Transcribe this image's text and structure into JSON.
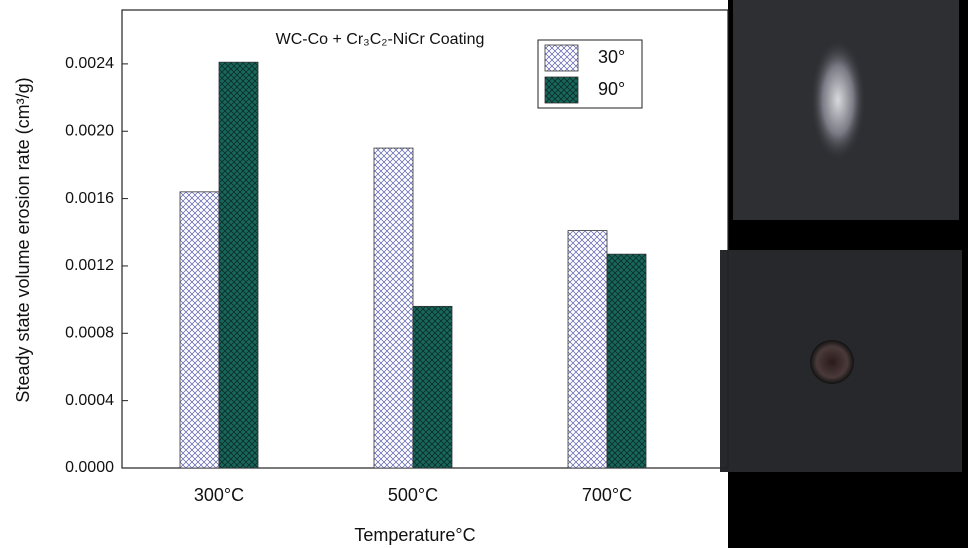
{
  "chart_data": {
    "type": "bar",
    "title": "WC-Co + Cr₃C₂-NiCr Coating",
    "x_label": "Temperature°C",
    "y_label": "Steady state volume erosion rate (cm³/g)",
    "categories": [
      "300°C",
      "500°C",
      "700°C"
    ],
    "series": [
      {
        "name": "30°",
        "color": "#5a5fb0",
        "values": [
          0.00164,
          0.0019,
          0.00141
        ]
      },
      {
        "name": "90°",
        "color": "#17675c",
        "values": [
          0.00241,
          0.00096,
          0.00127
        ]
      }
    ],
    "ylim": [
      0,
      0.00272
    ],
    "yticks": [
      {
        "value": 0,
        "label": "0.0000"
      },
      {
        "value": 0.0004,
        "label": "0.0004"
      },
      {
        "value": 0.0008,
        "label": "0.0008"
      },
      {
        "value": 0.0012,
        "label": "0.0012"
      },
      {
        "value": 0.0016,
        "label": "0.0016"
      },
      {
        "value": 0.002,
        "label": "0.0020"
      },
      {
        "value": 0.0024,
        "label": "0.0024"
      }
    ],
    "legend": "upper right"
  }
}
